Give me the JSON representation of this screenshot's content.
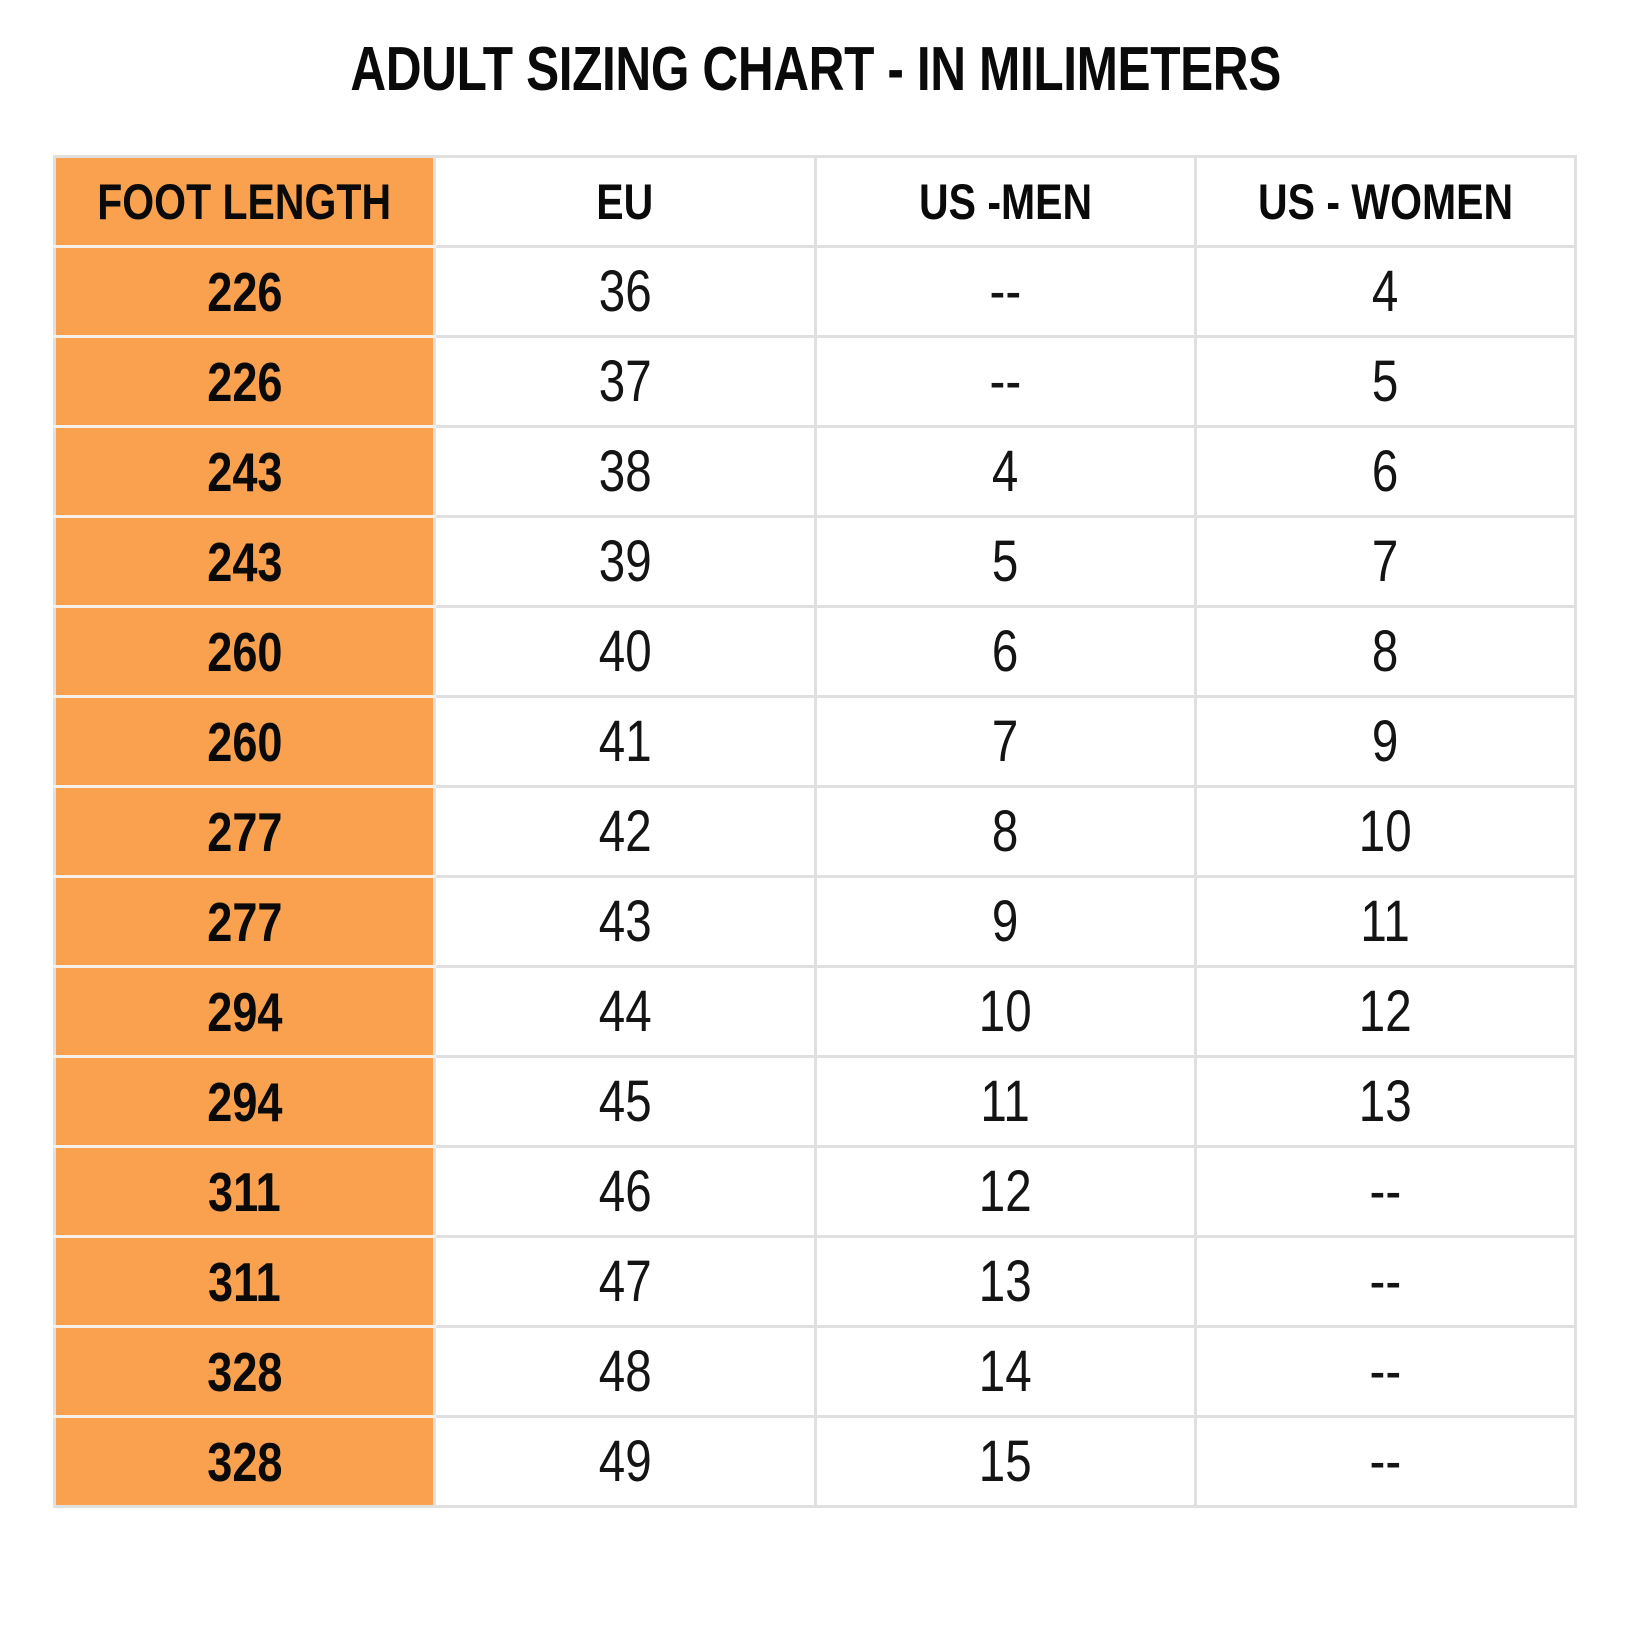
{
  "title": "ADULT SIZING CHART - IN MILIMETERS",
  "colors": {
    "accent_orange": "#F9A14E",
    "grid_line": "#E0E0E0",
    "orange_row_separator": "#F5F0E9",
    "text": "#111111",
    "background": "#FFFFFF"
  },
  "table": {
    "headers": [
      "FOOT LENGTH",
      "EU",
      "US -MEN",
      "US - WOMEN"
    ],
    "rows": [
      [
        "226",
        "36",
        "--",
        "4"
      ],
      [
        "226",
        "37",
        "--",
        "5"
      ],
      [
        "243",
        "38",
        "4",
        "6"
      ],
      [
        "243",
        "39",
        "5",
        "7"
      ],
      [
        "260",
        "40",
        "6",
        "8"
      ],
      [
        "260",
        "41",
        "7",
        "9"
      ],
      [
        "277",
        "42",
        "8",
        "10"
      ],
      [
        "277",
        "43",
        "9",
        "11"
      ],
      [
        "294",
        "44",
        "10",
        "12"
      ],
      [
        "294",
        "45",
        "11",
        "13"
      ],
      [
        "311",
        "46",
        "12",
        "--"
      ],
      [
        "311",
        "47",
        "13",
        "--"
      ],
      [
        "328",
        "48",
        "14",
        "--"
      ],
      [
        "328",
        "49",
        "15",
        "--"
      ]
    ]
  },
  "chart_data": {
    "type": "table",
    "title": "ADULT SIZING CHART - IN MILIMETERS",
    "columns": [
      "FOOT LENGTH",
      "EU",
      "US -MEN",
      "US - WOMEN"
    ],
    "rows": [
      [
        "226",
        "36",
        "--",
        "4"
      ],
      [
        "226",
        "37",
        "--",
        "5"
      ],
      [
        "243",
        "38",
        "4",
        "6"
      ],
      [
        "243",
        "39",
        "5",
        "7"
      ],
      [
        "260",
        "40",
        "6",
        "8"
      ],
      [
        "260",
        "41",
        "7",
        "9"
      ],
      [
        "277",
        "42",
        "8",
        "10"
      ],
      [
        "277",
        "43",
        "9",
        "11"
      ],
      [
        "294",
        "44",
        "10",
        "12"
      ],
      [
        "294",
        "45",
        "11",
        "13"
      ],
      [
        "311",
        "46",
        "12",
        "--"
      ],
      [
        "311",
        "47",
        "13",
        "--"
      ],
      [
        "328",
        "48",
        "14",
        "--"
      ],
      [
        "328",
        "49",
        "15",
        "--"
      ]
    ],
    "layout_hints": {
      "highlighted_column": "FOOT LENGTH",
      "highlight_color": "#F9A14E",
      "grid": true,
      "header_row": true
    }
  }
}
